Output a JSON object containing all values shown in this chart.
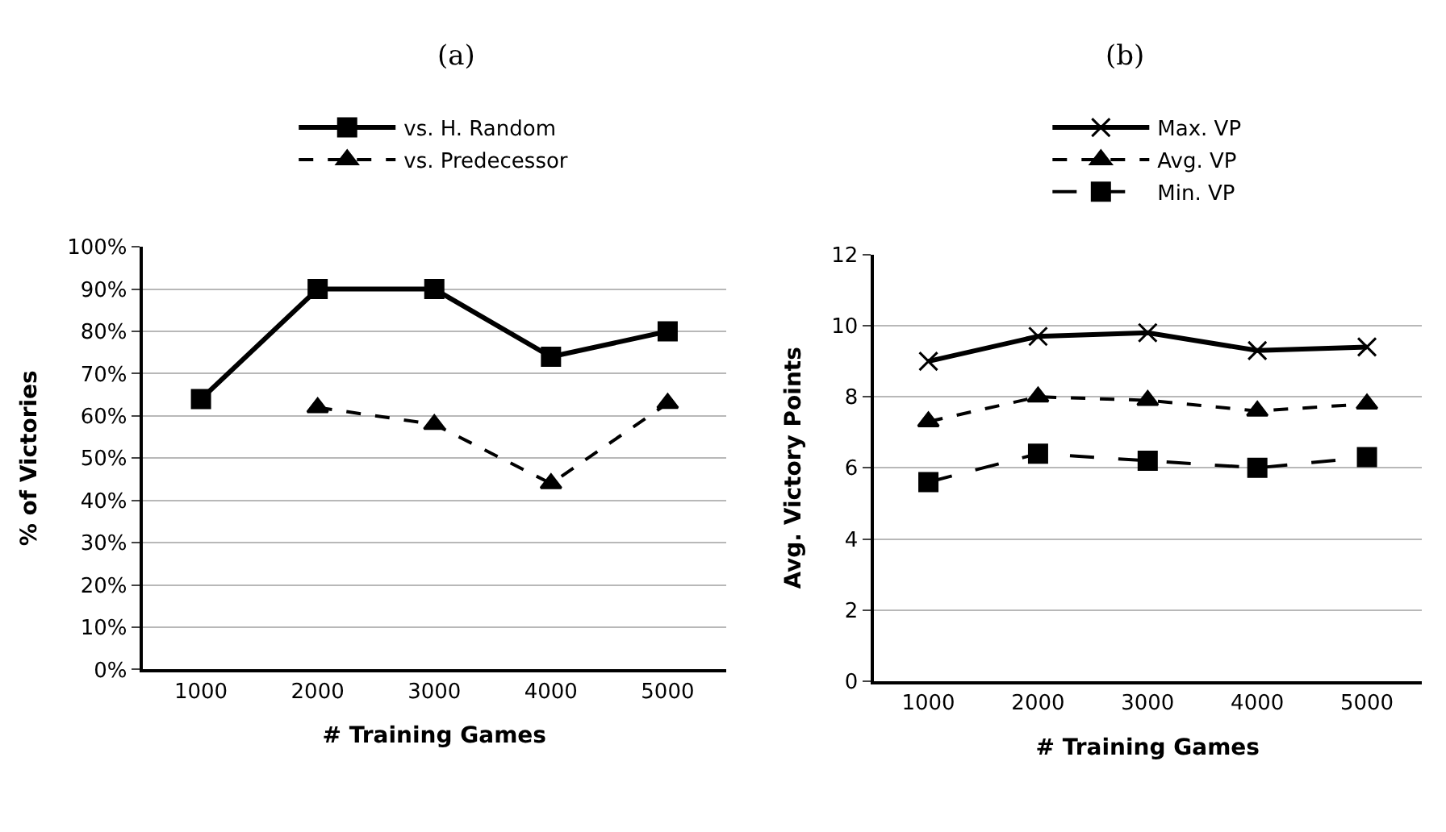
{
  "chart_data": [
    {
      "type": "line",
      "title": "(a)",
      "xlabel": "# Training Games",
      "ylabel": "% of Victories",
      "categories": [
        "1000",
        "2000",
        "3000",
        "4000",
        "5000"
      ],
      "series": [
        {
          "name": "vs. H. Random",
          "color": "#000000",
          "values": [
            64,
            90,
            90,
            74,
            80
          ],
          "marker": "square",
          "line_style": "solid"
        },
        {
          "name": "vs. Predecessor",
          "color": "#000000",
          "values": [
            null,
            62,
            58,
            44,
            63
          ],
          "marker": "triangle",
          "line_style": "dotted"
        }
      ],
      "ylim": [
        0,
        100
      ],
      "yticks": [
        {
          "value": 0,
          "label": "0%"
        },
        {
          "value": 10,
          "label": "10%"
        },
        {
          "value": 20,
          "label": "20%"
        },
        {
          "value": 30,
          "label": "30%"
        },
        {
          "value": 40,
          "label": "40%"
        },
        {
          "value": 50,
          "label": "50%"
        },
        {
          "value": 60,
          "label": "60%"
        },
        {
          "value": 70,
          "label": "70%"
        },
        {
          "value": 80,
          "label": "80%"
        },
        {
          "value": 90,
          "label": "90%"
        },
        {
          "value": 100,
          "label": "100%"
        }
      ],
      "grid": "y",
      "legend": "top"
    },
    {
      "type": "line",
      "title": "(b)",
      "xlabel": "# Training Games",
      "ylabel": "Avg. Victory Points",
      "categories": [
        "1000",
        "2000",
        "3000",
        "4000",
        "5000"
      ],
      "series": [
        {
          "name": "Max. VP",
          "color": "#000000",
          "values": [
            9.0,
            9.7,
            9.8,
            9.3,
            9.4
          ],
          "marker": "cross",
          "line_style": "solid"
        },
        {
          "name": "Avg. VP",
          "color": "#000000",
          "values": [
            7.3,
            8.0,
            7.9,
            7.6,
            7.8
          ],
          "marker": "triangle",
          "line_style": "dotted"
        },
        {
          "name": "Min. VP",
          "color": "#000000",
          "values": [
            5.6,
            6.4,
            6.2,
            6.0,
            6.3
          ],
          "marker": "square",
          "line_style": "dashed"
        }
      ],
      "ylim": [
        0,
        12
      ],
      "yticks": [
        0,
        2,
        4,
        6,
        8,
        10,
        12
      ],
      "grid": "y",
      "legend": "top"
    }
  ]
}
